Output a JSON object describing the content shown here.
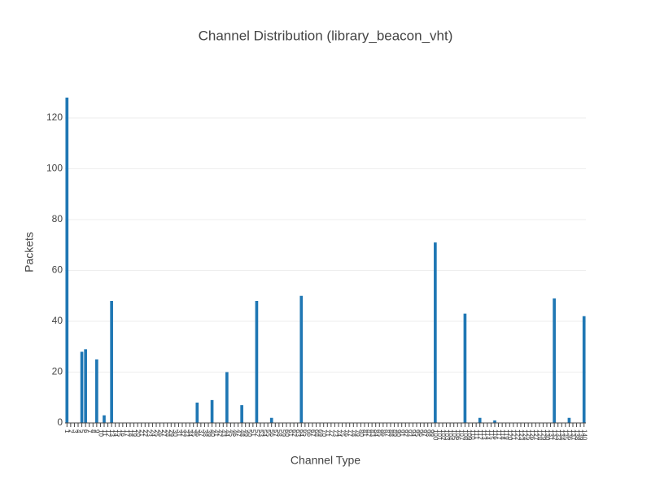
{
  "chart_data": {
    "type": "bar",
    "title": "Channel Distribution (library_beacon_vht)",
    "x_label": "Channel Type",
    "y_label": "Packets",
    "color": "#1f77b4",
    "grid": true,
    "ylim": [
      0,
      128
    ],
    "yticks": [
      0,
      20,
      40,
      60,
      80,
      100,
      120
    ],
    "categories": [
      "1",
      "2",
      "3",
      "4",
      "5",
      "6",
      "7",
      "8",
      "9",
      "10",
      "11",
      "12",
      "13",
      "14",
      "15",
      "16",
      "17",
      "18",
      "19",
      "20",
      "21",
      "22",
      "23",
      "24",
      "25",
      "26",
      "27",
      "28",
      "29",
      "30",
      "31",
      "32",
      "33",
      "34",
      "35",
      "36",
      "37",
      "38",
      "39",
      "40",
      "41",
      "42",
      "43",
      "44",
      "45",
      "46",
      "47",
      "48",
      "49",
      "50",
      "51",
      "52",
      "53",
      "54",
      "55",
      "56",
      "57",
      "58",
      "59",
      "60",
      "61",
      "62",
      "63",
      "64",
      "65",
      "66",
      "67",
      "68",
      "69",
      "70",
      "71",
      "72",
      "73",
      "74",
      "75",
      "76",
      "77",
      "78",
      "79",
      "80",
      "81",
      "82",
      "83",
      "84",
      "85",
      "86",
      "87",
      "88",
      "89",
      "90",
      "91",
      "92",
      "93",
      "94",
      "95",
      "96",
      "97",
      "98",
      "99",
      "100",
      "101",
      "102",
      "103",
      "104",
      "105",
      "106",
      "107",
      "108",
      "109",
      "110",
      "111",
      "112",
      "113",
      "114",
      "115",
      "116",
      "117",
      "118",
      "119",
      "120",
      "121",
      "122",
      "123",
      "124",
      "125",
      "126",
      "127",
      "128",
      "129",
      "130",
      "131",
      "132",
      "133",
      "134",
      "135",
      "136",
      "137",
      "138",
      "139",
      "140"
    ],
    "values": [
      128,
      0,
      0,
      0,
      28,
      29,
      0,
      0,
      25,
      0,
      3,
      0,
      48,
      0,
      0,
      0,
      0,
      0,
      0,
      0,
      0,
      0,
      0,
      0,
      0,
      0,
      0,
      0,
      0,
      0,
      0,
      0,
      0,
      0,
      0,
      8,
      0,
      0,
      0,
      9,
      0,
      0,
      0,
      20,
      0,
      0,
      0,
      7,
      0,
      0,
      0,
      48,
      0,
      0,
      0,
      2,
      0,
      0,
      0,
      0,
      0,
      0,
      0,
      50,
      0,
      0,
      0,
      0,
      0,
      0,
      0,
      0,
      0,
      0,
      0,
      0,
      0,
      0,
      0,
      0,
      0,
      0,
      0,
      0,
      0,
      0,
      0,
      0,
      0,
      0,
      0,
      0,
      0,
      0,
      0,
      0,
      0,
      0,
      0,
      71,
      0,
      0,
      0,
      0,
      0,
      0,
      0,
      43,
      0,
      0,
      0,
      2,
      0,
      0,
      0,
      1,
      0,
      0,
      0,
      0,
      0,
      0,
      0,
      0,
      0,
      0,
      0,
      0,
      0,
      0,
      0,
      49,
      0,
      0,
      0,
      2,
      0,
      0,
      0,
      42
    ]
  }
}
